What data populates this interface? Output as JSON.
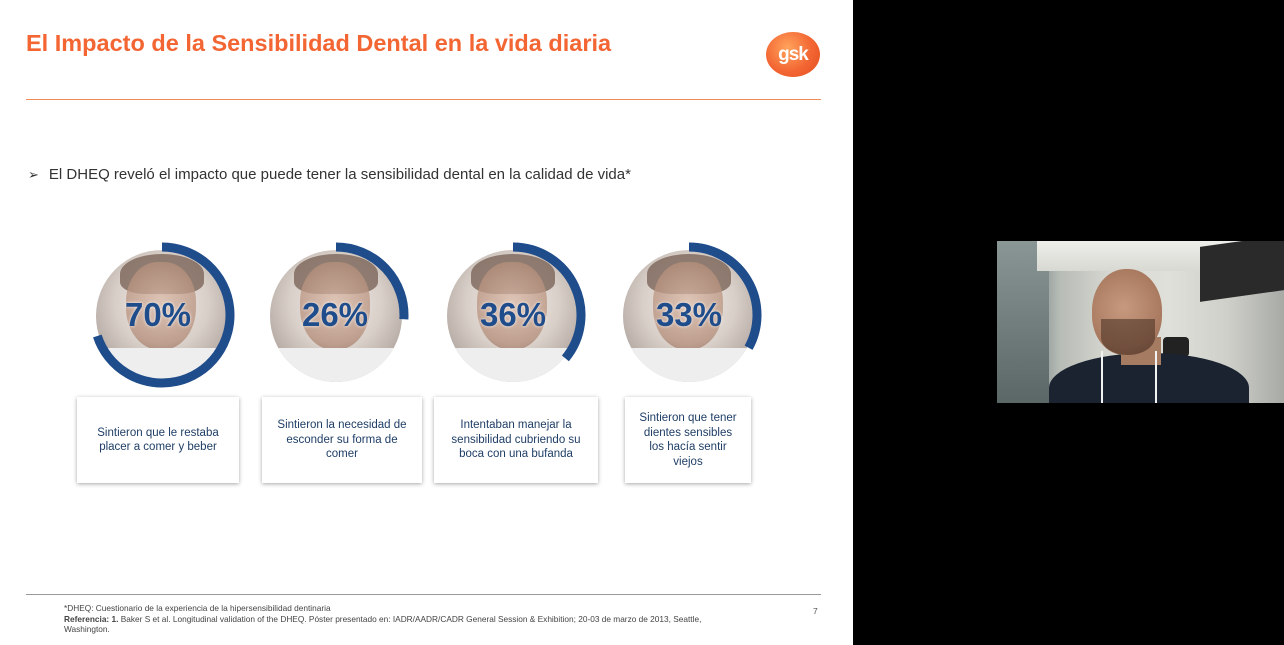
{
  "slide": {
    "title": "El Impacto de la Sensibilidad Dental en la vida diaria",
    "logo_text": "gsk",
    "bullet_marker": "➢",
    "bullet": "El DHEQ reveló el impacto que puede tener la sensibilidad dental en la calidad de vida*",
    "stats": [
      {
        "value": 70,
        "label": "70%",
        "caption": "Sintieron que le restaba placer a comer y beber"
      },
      {
        "value": 26,
        "label": "26%",
        "caption": "Sintieron la necesidad de esconder su forma de comer"
      },
      {
        "value": 36,
        "label": "36%",
        "caption": "Intentaban manejar la sensibilidad cubriendo su boca con una bufanda"
      },
      {
        "value": 33,
        "label": "33%",
        "caption": "Sintieron que tener dientes sensibles los hacía sentir viejos"
      }
    ],
    "footnote_def": "*DHEQ: Cuestionario de la experiencia de la hipersensibilidad dentinaria",
    "reference_label": "Referencia: 1.",
    "reference_text": "Baker S et al. Longitudinal validation of the DHEQ. Póster presentado en: IADR/AADR/CADR General Session & Exhibition; 20-03 de marzo de 2013, Seattle, Washington.",
    "page_number": "7"
  },
  "colors": {
    "title": "#f36633",
    "ring": "#1f4c8a",
    "card_text": "#1f3e66"
  }
}
